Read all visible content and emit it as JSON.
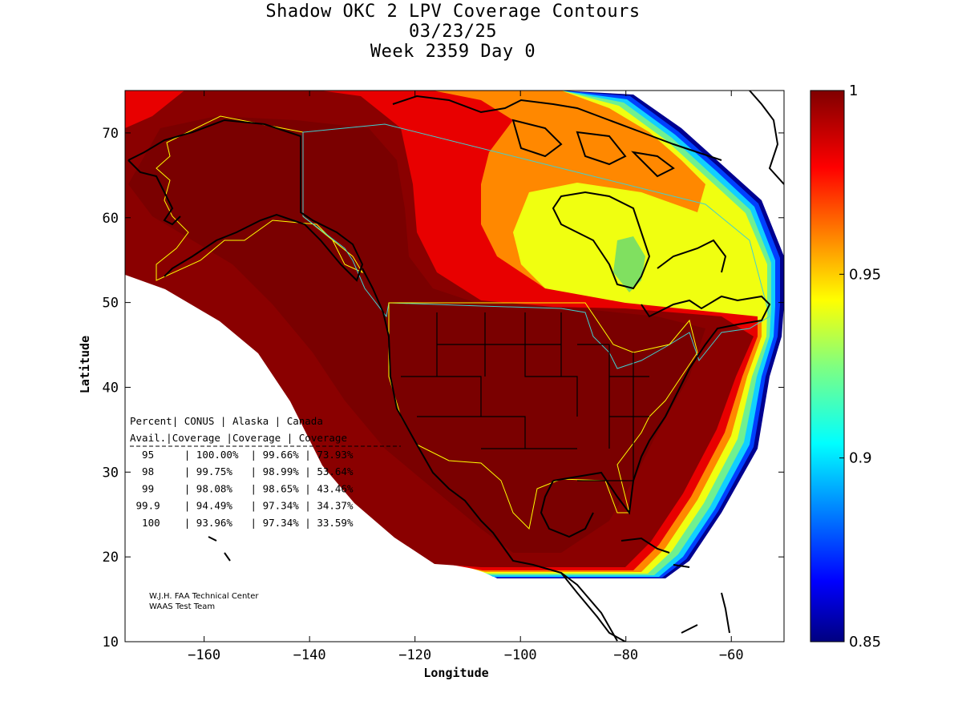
{
  "title": {
    "line1": "Shadow OKC 2 LPV Coverage Contours",
    "line2": "03/23/25",
    "line3": "Week 2359 Day 0"
  },
  "axes": {
    "xlabel": "Longitude",
    "ylabel": "Latitude",
    "xticks": [
      -160,
      -140,
      -120,
      -100,
      -80,
      -60
    ],
    "yticks": [
      10,
      20,
      30,
      40,
      50,
      60,
      70
    ],
    "xlim": [
      -175,
      -50
    ],
    "ylim": [
      10,
      75
    ]
  },
  "colorbar": {
    "colormap": "jet",
    "range": [
      0.85,
      1
    ],
    "labels": [
      "1",
      "0.95",
      "0.9",
      "0.85"
    ],
    "label_values": [
      1,
      0.95,
      0.9,
      0.85
    ]
  },
  "stats_table": {
    "header1": [
      "Percent",
      "CONUS",
      "Alaska",
      "Canada"
    ],
    "header2": [
      "Avail.",
      "Coverage",
      "Coverage",
      "Coverage"
    ],
    "rows": [
      {
        "pct": "95",
        "conus": "100.00%",
        "alaska": "99.66%",
        "canada": "73.93%"
      },
      {
        "pct": "98",
        "conus": "99.75%",
        "alaska": "98.99%",
        "canada": "53.64%"
      },
      {
        "pct": "99",
        "conus": "98.08%",
        "alaska": "98.65%",
        "canada": "43.46%"
      },
      {
        "pct": "99.9",
        "conus": "94.49%",
        "alaska": "97.34%",
        "canada": "34.37%"
      },
      {
        "pct": "100",
        "conus": "93.96%",
        "alaska": "97.34%",
        "canada": "33.59%"
      }
    ]
  },
  "credit": {
    "line1": "W.J.H. FAA Technical Center",
    "line2": "WAAS Test Team"
  },
  "colors": {
    "dark_red": "#800000",
    "red": "#e00000",
    "orange": "#ff7a00",
    "yellow": "#f0ff10",
    "green": "#8ff070",
    "cyan": "#00e0ff",
    "blue": "#0030ff",
    "navy": "#000090",
    "region_outline": "#ffff00",
    "border_outline": "#40d0d0"
  }
}
